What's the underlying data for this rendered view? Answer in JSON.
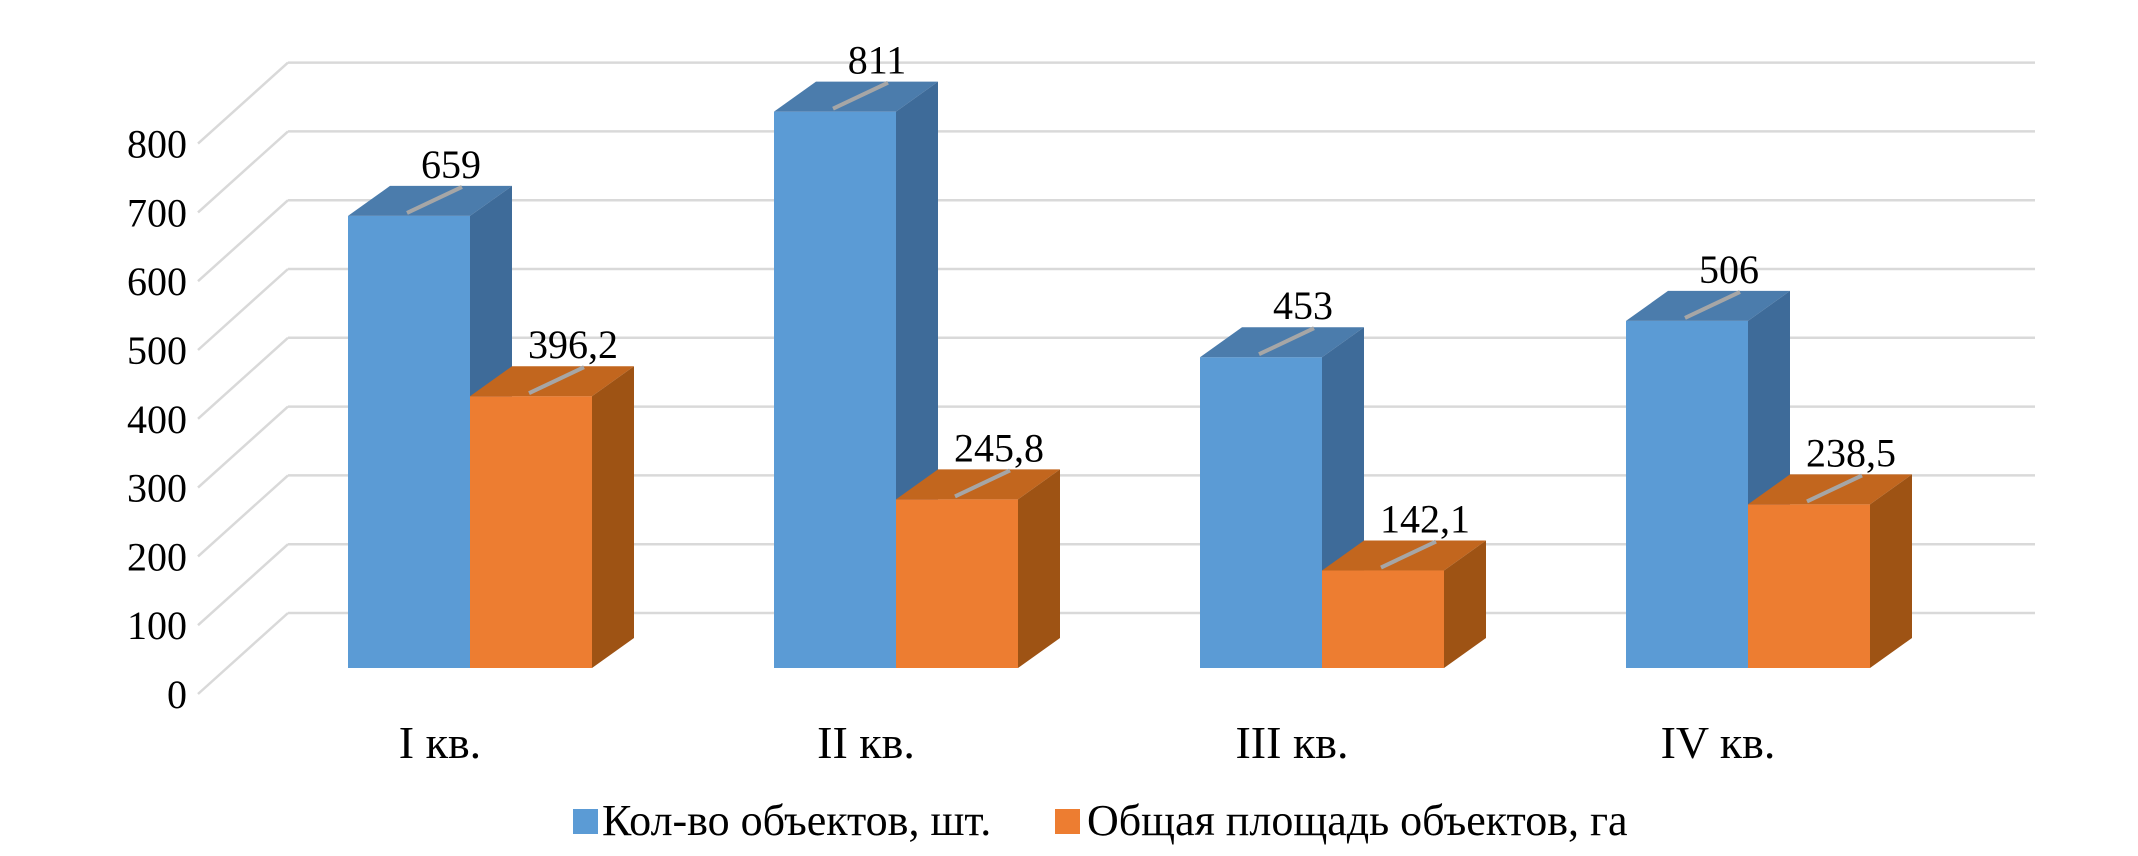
{
  "chart_data": {
    "type": "bar",
    "variant": "3d-clustered-column",
    "title": "",
    "xlabel": "",
    "ylabel": "",
    "categories": [
      "I кв.",
      "II кв.",
      "III кв.",
      "IV кв."
    ],
    "series": [
      {
        "name": "Кол-во объектов, шт.",
        "values": [
          659,
          811,
          453,
          506
        ],
        "value_labels": [
          "659",
          "811",
          "453",
          "506"
        ],
        "color_front": "#5B9BD5",
        "color_top": "#4B7CAC",
        "color_side": "#3E6B99"
      },
      {
        "name": "Общая площадь объектов, га",
        "values": [
          396.2,
          245.8,
          142.1,
          238.5
        ],
        "value_labels": [
          "396,2",
          "245,8",
          "142,1",
          "238,5"
        ],
        "color_front": "#ED7D31",
        "color_top": "#C2661E",
        "color_side": "#9E5314"
      }
    ],
    "ylim": [
      0,
      800
    ],
    "ytick_interval": 100,
    "ytick_labels": [
      "0",
      "100",
      "200",
      "300",
      "400",
      "500",
      "600",
      "700",
      "800"
    ],
    "grid": true,
    "legend_position": "bottom",
    "gridline_color": "#D9D9D9",
    "bar_top_tick_color": "#A6A6A6",
    "text_color": "#000000",
    "background_color": "#FFFFFF"
  }
}
